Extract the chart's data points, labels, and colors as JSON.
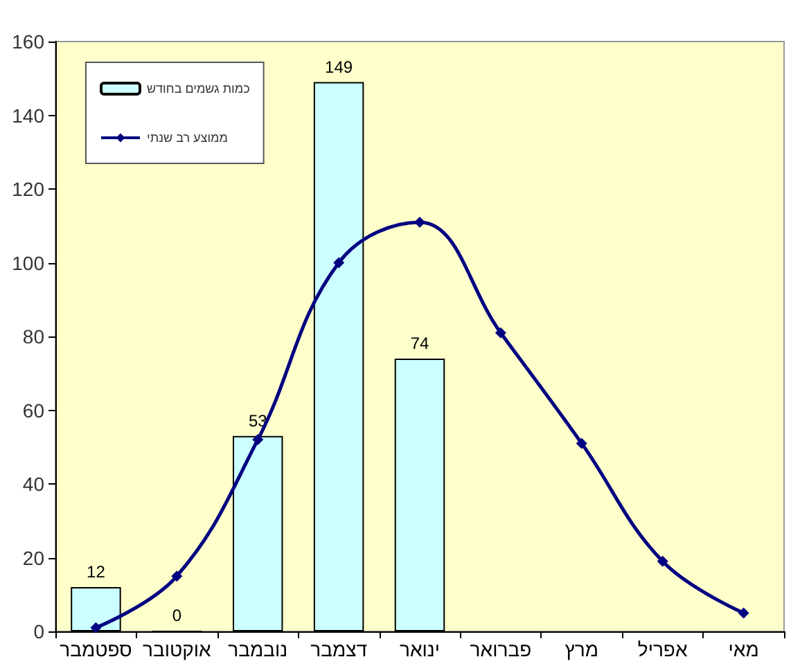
{
  "chart_data": {
    "type": "bar",
    "categories": [
      "ספטמבר",
      "אוקטובר",
      "נובמבר",
      "דצמבר",
      "ינואר",
      "פברואר",
      "מרץ",
      "אפריל",
      "מאי"
    ],
    "series": [
      {
        "name": "כמות גשמים בחודש",
        "color": "#ccffff",
        "values": [
          12,
          0,
          53,
          149,
          74,
          null,
          null,
          null,
          null
        ],
        "value_labels": [
          "12",
          "0",
          "53",
          "149",
          "74",
          null,
          null,
          null,
          null
        ]
      },
      {
        "name": "ממוצע רב שנתי",
        "type": "line",
        "color": "#000080",
        "values": [
          1,
          15,
          52,
          100,
          111,
          81,
          51,
          19,
          5
        ]
      }
    ],
    "ylim": [
      0,
      160
    ],
    "yticks": [
      0,
      20,
      40,
      60,
      80,
      100,
      120,
      140,
      160
    ],
    "grid": false,
    "legend": "top left",
    "marker": "diamond"
  }
}
